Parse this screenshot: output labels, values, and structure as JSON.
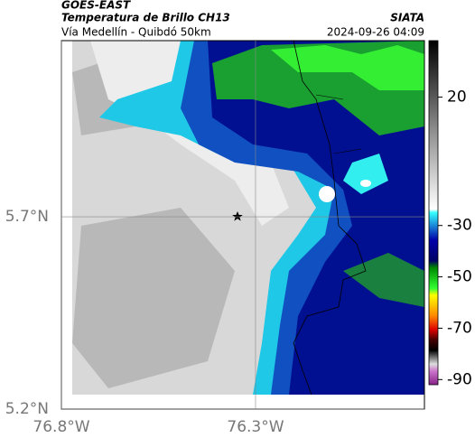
{
  "header": {
    "source": "GOES-EAST",
    "title": "Temperatura de Brillo CH13",
    "brand": "SIATA",
    "subtitle": "Vía Medellín - Quibdó 50km",
    "timestamp": "2024-09-26 04:09"
  },
  "map": {
    "xlim": [
      -76.8,
      -75.865
    ],
    "ylim": [
      5.2,
      6.158
    ],
    "xticks": [
      {
        "value": -76.8,
        "label": "76.8°W"
      },
      {
        "value": -76.3,
        "label": "76.3°W"
      }
    ],
    "yticks": [
      {
        "value": 5.7,
        "label": "5.7°N"
      },
      {
        "value": 5.2,
        "label": "5.2°N"
      }
    ]
  },
  "colorbar": {
    "lim": [
      42,
      -92
    ],
    "ticks": [
      20,
      -30,
      -50,
      -70,
      -90
    ]
  }
}
